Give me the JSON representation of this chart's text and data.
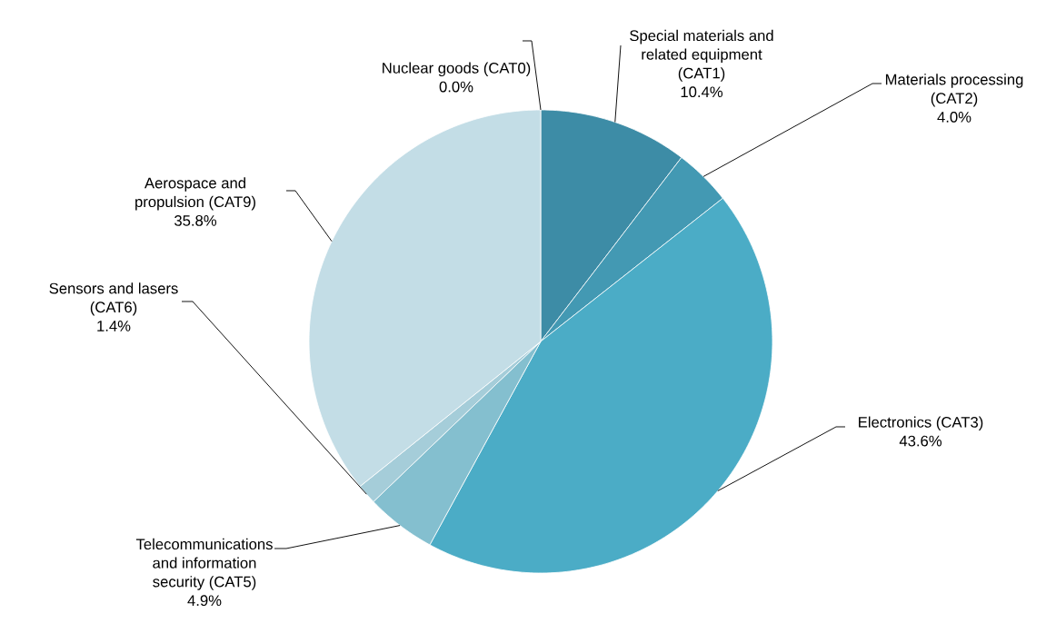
{
  "chart_data": {
    "type": "pie",
    "categories": [
      "Nuclear goods (CAT0)",
      "Special materials and related equipment (CAT1)",
      "Materials processing (CAT2)",
      "Electronics (CAT3)",
      "Telecommunications and information security (CAT5)",
      "Sensors and lasers (CAT6)",
      "Aerospace and propulsion (CAT9)"
    ],
    "values": [
      0.0,
      10.4,
      4.0,
      43.6,
      4.9,
      1.4,
      35.8
    ],
    "colors": [
      "#357f96",
      "#3d8ca6",
      "#4399b3",
      "#4bacc6",
      "#84bfcf",
      "#a5cdd9",
      "#c3dde6"
    ],
    "value_labels": [
      "0.0%",
      "10.4%",
      "4.0%",
      "43.6%",
      "4.9%",
      "1.4%",
      "35.8%"
    ]
  }
}
